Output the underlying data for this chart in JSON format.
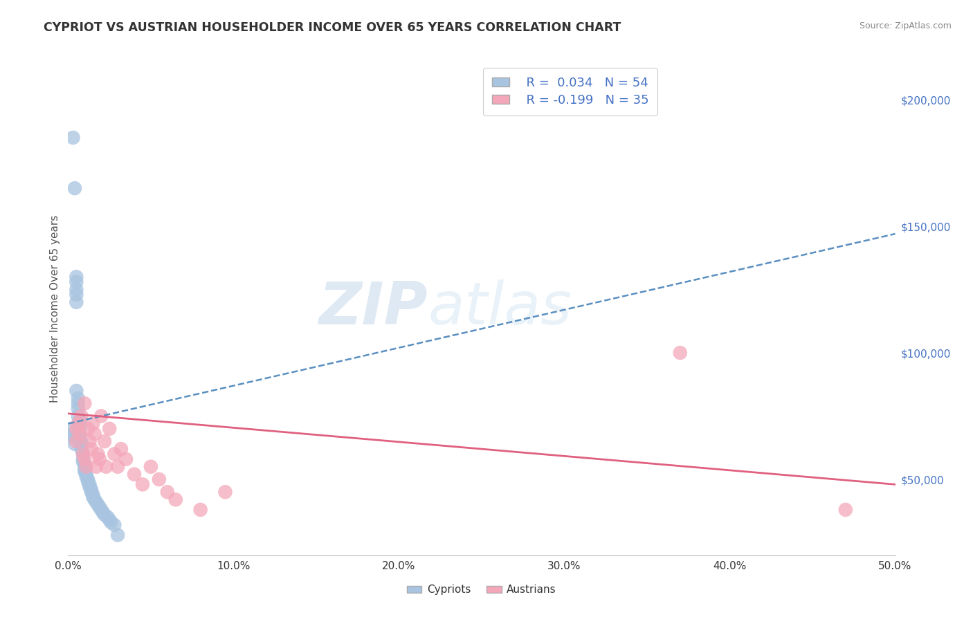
{
  "title": "CYPRIOT VS AUSTRIAN HOUSEHOLDER INCOME OVER 65 YEARS CORRELATION CHART",
  "source_text": "Source: ZipAtlas.com",
  "ylabel": "Householder Income Over 65 years",
  "xlim": [
    0.0,
    0.5
  ],
  "ylim": [
    20000,
    215000
  ],
  "xticks": [
    0.0,
    0.1,
    0.2,
    0.3,
    0.4,
    0.5
  ],
  "xtick_labels": [
    "0.0%",
    "10.0%",
    "20.0%",
    "30.0%",
    "40.0%",
    "50.0%"
  ],
  "ytick_labels_right": [
    "$50,000",
    "$100,000",
    "$150,000",
    "$200,000"
  ],
  "ytick_values_right": [
    50000,
    100000,
    150000,
    200000
  ],
  "cypriot_color": "#a8c4e0",
  "cypriot_line_color": "#5a8fc0",
  "austrian_color": "#f4a7b9",
  "austrian_line_color": "#e06080",
  "cypriot_R": 0.034,
  "cypriot_N": 54,
  "austrian_R": -0.199,
  "austrian_N": 35,
  "background_color": "#ffffff",
  "grid_color": "#d0d0d0",
  "title_color": "#333333",
  "axis_label_color": "#555555",
  "tick_color": "#333333",
  "right_tick_color": "#4472c4",
  "legend_R_color": "#4472c4",
  "watermark_text": "ZIPatlas",
  "cy_x": [
    0.003,
    0.004,
    0.005,
    0.005,
    0.005,
    0.005,
    0.005,
    0.005,
    0.006,
    0.006,
    0.006,
    0.006,
    0.007,
    0.007,
    0.007,
    0.007,
    0.007,
    0.008,
    0.008,
    0.008,
    0.008,
    0.009,
    0.009,
    0.009,
    0.01,
    0.01,
    0.01,
    0.01,
    0.011,
    0.011,
    0.012,
    0.012,
    0.013,
    0.013,
    0.014,
    0.014,
    0.015,
    0.015,
    0.016,
    0.017,
    0.018,
    0.019,
    0.02,
    0.021,
    0.022,
    0.024,
    0.025,
    0.026,
    0.028,
    0.03,
    0.002,
    0.003,
    0.004,
    0.004
  ],
  "cy_y": [
    185000,
    165000,
    130000,
    128000,
    125000,
    123000,
    120000,
    85000,
    82000,
    80000,
    78000,
    75000,
    73000,
    72000,
    70000,
    68000,
    67000,
    65000,
    64000,
    63000,
    62000,
    60000,
    58000,
    57000,
    56000,
    55000,
    54000,
    53000,
    52000,
    51000,
    50000,
    49000,
    48000,
    47000,
    46000,
    45000,
    44000,
    43000,
    42000,
    41000,
    40000,
    39000,
    38000,
    37000,
    36000,
    35000,
    34000,
    33000,
    32000,
    28000,
    70000,
    68000,
    66000,
    64000
  ],
  "at_x": [
    0.005,
    0.005,
    0.006,
    0.007,
    0.008,
    0.009,
    0.01,
    0.01,
    0.011,
    0.012,
    0.013,
    0.014,
    0.015,
    0.016,
    0.017,
    0.018,
    0.019,
    0.02,
    0.022,
    0.023,
    0.025,
    0.028,
    0.03,
    0.032,
    0.035,
    0.04,
    0.045,
    0.05,
    0.055,
    0.06,
    0.065,
    0.08,
    0.095,
    0.37,
    0.47
  ],
  "at_y": [
    70000,
    65000,
    72000,
    68000,
    75000,
    60000,
    80000,
    58000,
    55000,
    70000,
    65000,
    62000,
    72000,
    68000,
    55000,
    60000,
    58000,
    75000,
    65000,
    55000,
    70000,
    60000,
    55000,
    62000,
    58000,
    52000,
    48000,
    55000,
    50000,
    45000,
    42000,
    38000,
    45000,
    100000,
    38000
  ],
  "cy_trend_x": [
    0.0,
    0.5
  ],
  "cy_trend_y": [
    72000,
    147000
  ],
  "at_trend_x": [
    0.0,
    0.5
  ],
  "at_trend_y": [
    76000,
    48000
  ]
}
